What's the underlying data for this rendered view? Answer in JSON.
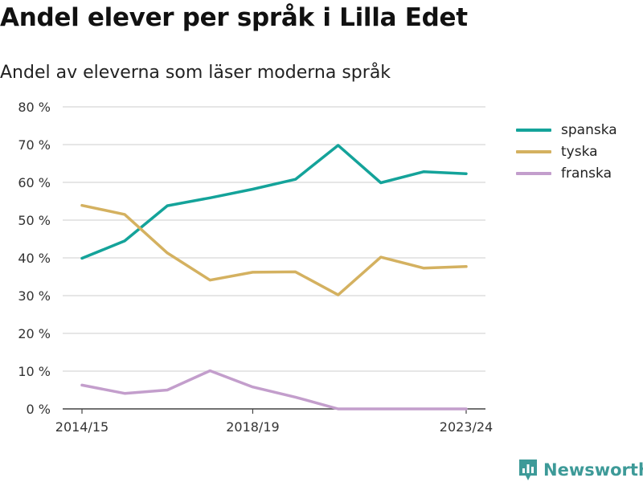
{
  "title": "Andel elever per språk i Lilla Edet",
  "subtitle": "Andel av eleverna som läser moderna språk",
  "brand": {
    "name": "Newsworthy",
    "color": "#3d9a98",
    "icon": "newsworthy-logo-icon"
  },
  "chart_data": {
    "type": "line",
    "x": [
      "2014/15",
      "2015/16",
      "2016/17",
      "2017/18",
      "2018/19",
      "2019/20",
      "2020/21",
      "2021/22",
      "2022/23",
      "2023/24"
    ],
    "x_tick_labels": [
      "2014/15",
      "2018/19",
      "2023/24"
    ],
    "y_ticks": [
      "0 %",
      "10 %",
      "20 %",
      "30 %",
      "40 %",
      "50 %",
      "60 %",
      "70 %",
      "80 %"
    ],
    "ylim": [
      0,
      80
    ],
    "y_unit": "%",
    "grid": true,
    "legend_position": "right",
    "series": [
      {
        "name": "spanska",
        "color": "#14a39a",
        "values": [
          39.9,
          44.5,
          53.8,
          55.9,
          58.2,
          60.8,
          69.8,
          59.9,
          62.8,
          62.3
        ]
      },
      {
        "name": "tyska",
        "color": "#d4b160",
        "values": [
          53.9,
          51.5,
          41.3,
          34.1,
          36.2,
          36.3,
          30.2,
          40.2,
          37.3,
          37.7
        ]
      },
      {
        "name": "franska",
        "color": "#c39ecc",
        "values": [
          6.3,
          4.1,
          5.0,
          10.1,
          5.8,
          3.1,
          0.0,
          0.0,
          0.0,
          0.0
        ]
      }
    ]
  }
}
